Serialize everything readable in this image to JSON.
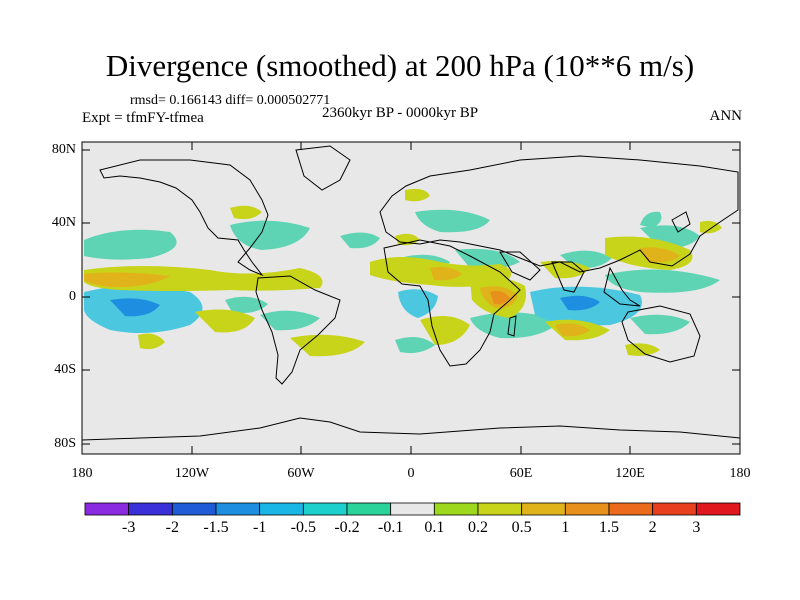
{
  "title": "Divergence (smoothed) at 200 hPa (10**6 m/s)",
  "stats": "rmsd= 0.166143  diff= 0.000502771",
  "experiment": "Expt = tfmFY-tfmea",
  "period": "2360kyr BP - 0000kyr BP",
  "season": "ANN",
  "axes": {
    "y_labels": [
      "80N",
      "40N",
      "0",
      "40S",
      "80S"
    ],
    "x_labels": [
      "180",
      "120W",
      "60W",
      "0",
      "60E",
      "120E",
      "180"
    ]
  },
  "colorbar": {
    "labels": [
      "-3",
      "-2",
      "-1.5",
      "-1",
      "-0.5",
      "-0.2",
      "-0.1",
      "0.1",
      "0.2",
      "0.5",
      "1",
      "1.5",
      "2",
      "3"
    ],
    "colors": [
      "#8a2be2",
      "#3a2fd8",
      "#1f5bd6",
      "#1e8fe0",
      "#19b6e6",
      "#1ed0cc",
      "#2ad39a",
      "#e8e8e8",
      "#9ed81c",
      "#c8d41a",
      "#e0b31a",
      "#e8901c",
      "#ec6a1c",
      "#e8401e",
      "#e0181e"
    ]
  }
}
